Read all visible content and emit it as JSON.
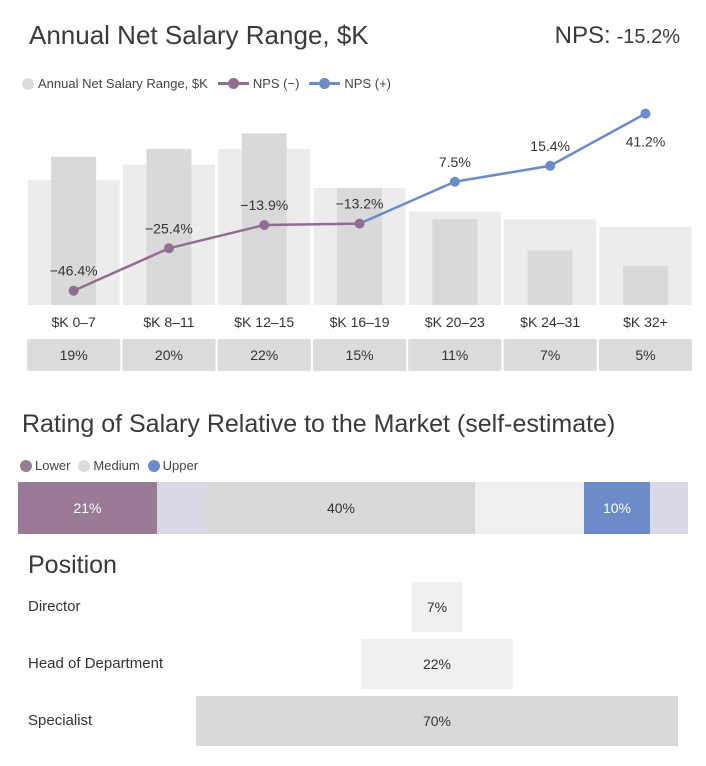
{
  "header": {
    "title": "Annual Net Salary Range, $K",
    "nps_label": "NPS:",
    "nps_value": "-15.2%"
  },
  "legend1": {
    "items": [
      {
        "label": "Annual Net Salary Range, $K",
        "color": "#dcdcdc"
      },
      {
        "label": "NPS (−)",
        "color": "#8f6e8f"
      },
      {
        "label": "NPS (+)",
        "color": "#6b8cc9"
      }
    ]
  },
  "colors": {
    "bar_bg": "#ececec",
    "bar_fg": "#d9d9d9",
    "nps_neg": "#8f6e8f",
    "nps_pos": "#6b8cc9",
    "lower": "#9a7b96",
    "medium": "#d9d9d9",
    "upper": "#6b8cc9",
    "share_box": "#dcdcdc"
  },
  "chart_data": [
    {
      "type": "bar",
      "title": "Annual Net Salary Range, $K",
      "categories": [
        "$K 0–7",
        "$K 8–11",
        "$K 12–15",
        "$K 16–19",
        "$K 20–23",
        "$K 24–31",
        "$K 32+"
      ],
      "series": [
        {
          "name": "Annual Net Salary Range, $K",
          "values": [
            19,
            20,
            22,
            15,
            11,
            7,
            5
          ],
          "labels": [
            "19%",
            "20%",
            "22%",
            "15%",
            "11%",
            "7%",
            "5%"
          ]
        }
      ],
      "background_values": [
        16,
        18,
        20,
        15,
        12,
        11,
        10
      ],
      "ylim": [
        0,
        25
      ]
    },
    {
      "type": "line",
      "categories": [
        "$K 0–7",
        "$K 8–11",
        "$K 12–15",
        "$K 16–19",
        "$K 20–23",
        "$K 24–31",
        "$K 32+"
      ],
      "series": [
        {
          "name": "NPS (−)",
          "values": [
            -46.4,
            -25.4,
            -13.9,
            -13.2,
            null,
            null,
            null
          ]
        },
        {
          "name": "NPS (+)",
          "values": [
            null,
            null,
            null,
            -13.2,
            7.5,
            15.4,
            41.2
          ]
        }
      ],
      "point_labels": [
        "−46.4%",
        "−25.4%",
        "−13.9%",
        "−13.2%",
        "7.5%",
        "15.4%",
        "41.2%"
      ],
      "ylim": [
        -50,
        42
      ]
    },
    {
      "type": "bar",
      "orientation": "horizontal-stacked",
      "title": "Rating of Salary Relative to the Market (self-estimate)",
      "categories": [
        "Lower",
        "Medium",
        "Upper"
      ],
      "series": [
        {
          "name": "Lower",
          "value": 21,
          "label": "21%"
        },
        {
          "name": "Medium",
          "value": 40,
          "label": "40%"
        },
        {
          "name": "Upper",
          "value": 10,
          "label": "10%"
        }
      ]
    },
    {
      "type": "bar",
      "orientation": "horizontal-centered",
      "title": "Position",
      "categories": [
        "Director",
        "Head of Department",
        "Specialist"
      ],
      "values": [
        7,
        22,
        70
      ],
      "labels": [
        "7%",
        "22%",
        "70%"
      ]
    }
  ],
  "section2": {
    "title": "Rating of Salary Relative to the Market (self-estimate)",
    "legend": [
      {
        "label": "Lower"
      },
      {
        "label": "Medium"
      },
      {
        "label": "Upper"
      }
    ]
  },
  "section3": {
    "title": "Position"
  }
}
